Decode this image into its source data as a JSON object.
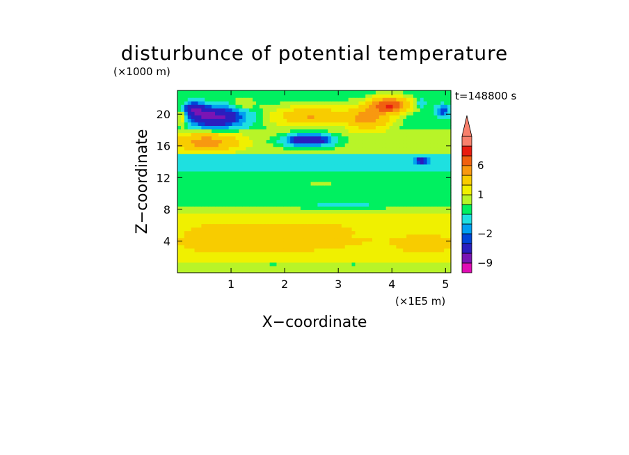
{
  "chart_data": {
    "type": "heatmap",
    "title": "disturbunce of potential temperature",
    "xlabel": "X−coordinate",
    "ylabel": "Z−coordinate",
    "x_unit": "(×1E5 m)",
    "y_unit": "(×1000 m)",
    "time_label": "t=148800 s",
    "xlim": [
      0,
      5.1
    ],
    "ylim": [
      0,
      23
    ],
    "x_ticks": [
      1,
      2,
      3,
      4,
      5
    ],
    "y_ticks": [
      4,
      8,
      12,
      16,
      20
    ],
    "x_tick_labels": [
      "1",
      "2",
      "3",
      "4",
      "5"
    ],
    "y_tick_labels": [
      "4",
      "8",
      "12",
      "16",
      "20"
    ],
    "colorbar": {
      "levels": [
        -12,
        -9,
        -6,
        -3,
        -2,
        -1,
        0,
        0.5,
        1,
        2,
        4,
        6,
        9,
        12
      ],
      "colors": [
        "#e00cb4",
        "#7a14b4",
        "#2a1ebf",
        "#0046d8",
        "#00a0f0",
        "#1ee0e0",
        "#00f060",
        "#b8f428",
        "#f0f000",
        "#f8cc00",
        "#f89810",
        "#f06010",
        "#e81c10",
        "#f8806c"
      ],
      "labels": [
        {
          "text": "−9",
          "value": -9
        },
        {
          "text": "−2",
          "value": -2
        },
        {
          "text": "1",
          "value": 1
        },
        {
          "text": "6",
          "value": 6
        }
      ]
    },
    "layers": [
      {
        "z": [
          0,
          1.2
        ],
        "base": 0.7
      },
      {
        "z": [
          1.2,
          2.5
        ],
        "base": 1.2
      },
      {
        "z": [
          2.5,
          4.5
        ],
        "base": 1.8
      },
      {
        "z": [
          4.5,
          6.0
        ],
        "base": 1.4
      },
      {
        "z": [
          6.0,
          7.5
        ],
        "base": 1.0
      },
      {
        "z": [
          7.5,
          8.4
        ],
        "base": 0.6
      },
      {
        "z": [
          8.4,
          10.5
        ],
        "base": 0.2
      },
      {
        "z": [
          10.5,
          13.0
        ],
        "base": 0.0
      },
      {
        "z": [
          13.0,
          14.0
        ],
        "base": -0.8
      },
      {
        "z": [
          14.0,
          15.0
        ],
        "base": -0.5
      },
      {
        "z": [
          15.0,
          18.0
        ],
        "base": 0.6
      },
      {
        "z": [
          18.0,
          20.5
        ],
        "base": 0.3
      },
      {
        "z": [
          20.5,
          23.0
        ],
        "base": 0.4
      }
    ],
    "features": [
      {
        "x": 0.7,
        "z": 19.7,
        "rx": 0.55,
        "rz": 1.4,
        "value": -7
      },
      {
        "x": 0.3,
        "z": 20.7,
        "rx": 0.25,
        "rz": 1.0,
        "value": -5
      },
      {
        "x": 0.55,
        "z": 16.5,
        "rx": 0.65,
        "rz": 1.2,
        "value": 5
      },
      {
        "x": 2.45,
        "z": 16.8,
        "rx": 0.45,
        "rz": 0.8,
        "value": -6
      },
      {
        "x": 2.5,
        "z": 19.8,
        "rx": 0.7,
        "rz": 1.2,
        "value": 4
      },
      {
        "x": 3.55,
        "z": 19.6,
        "rx": 0.45,
        "rz": 1.6,
        "value": 5
      },
      {
        "x": 3.95,
        "z": 21.2,
        "rx": 0.35,
        "rz": 1.0,
        "value": 9
      },
      {
        "x": 4.55,
        "z": 14.2,
        "rx": 0.12,
        "rz": 0.4,
        "value": -5
      },
      {
        "x": 4.55,
        "z": 21.5,
        "rx": 0.1,
        "rz": 0.6,
        "value": -1
      },
      {
        "x": 4.95,
        "z": 20.5,
        "rx": 0.15,
        "rz": 0.8,
        "value": -3
      },
      {
        "x": 1.2,
        "z": 21.2,
        "rx": 0.25,
        "rz": 0.8,
        "value": 1
      },
      {
        "x": 1.8,
        "z": 18.5,
        "rx": 0.3,
        "rz": 1.2,
        "value": 0.5
      },
      {
        "x": 2.7,
        "z": 11.3,
        "rx": 0.4,
        "rz": 0.4,
        "value": 0.7
      },
      {
        "x": 2.0,
        "z": 5.0,
        "rx": 1.4,
        "rz": 1.8,
        "value": 2.8
      },
      {
        "x": 0.7,
        "z": 4.5,
        "rx": 0.6,
        "rz": 1.5,
        "value": 2.5
      },
      {
        "x": 4.6,
        "z": 4.0,
        "rx": 0.5,
        "rz": 1.2,
        "value": 2.5
      },
      {
        "x": 1.8,
        "z": 1.0,
        "rx": 0.4,
        "rz": 0.5,
        "value": 0.2
      },
      {
        "x": 3.3,
        "z": 1.0,
        "rx": 0.3,
        "rz": 0.5,
        "value": 0.2
      },
      {
        "x": 3.1,
        "z": 8.5,
        "rx": 1.0,
        "rz": 0.4,
        "value": -0.2
      },
      {
        "x": 0.1,
        "z": 20.0,
        "rx": 0.12,
        "rz": 1.5,
        "value": 3
      }
    ]
  }
}
